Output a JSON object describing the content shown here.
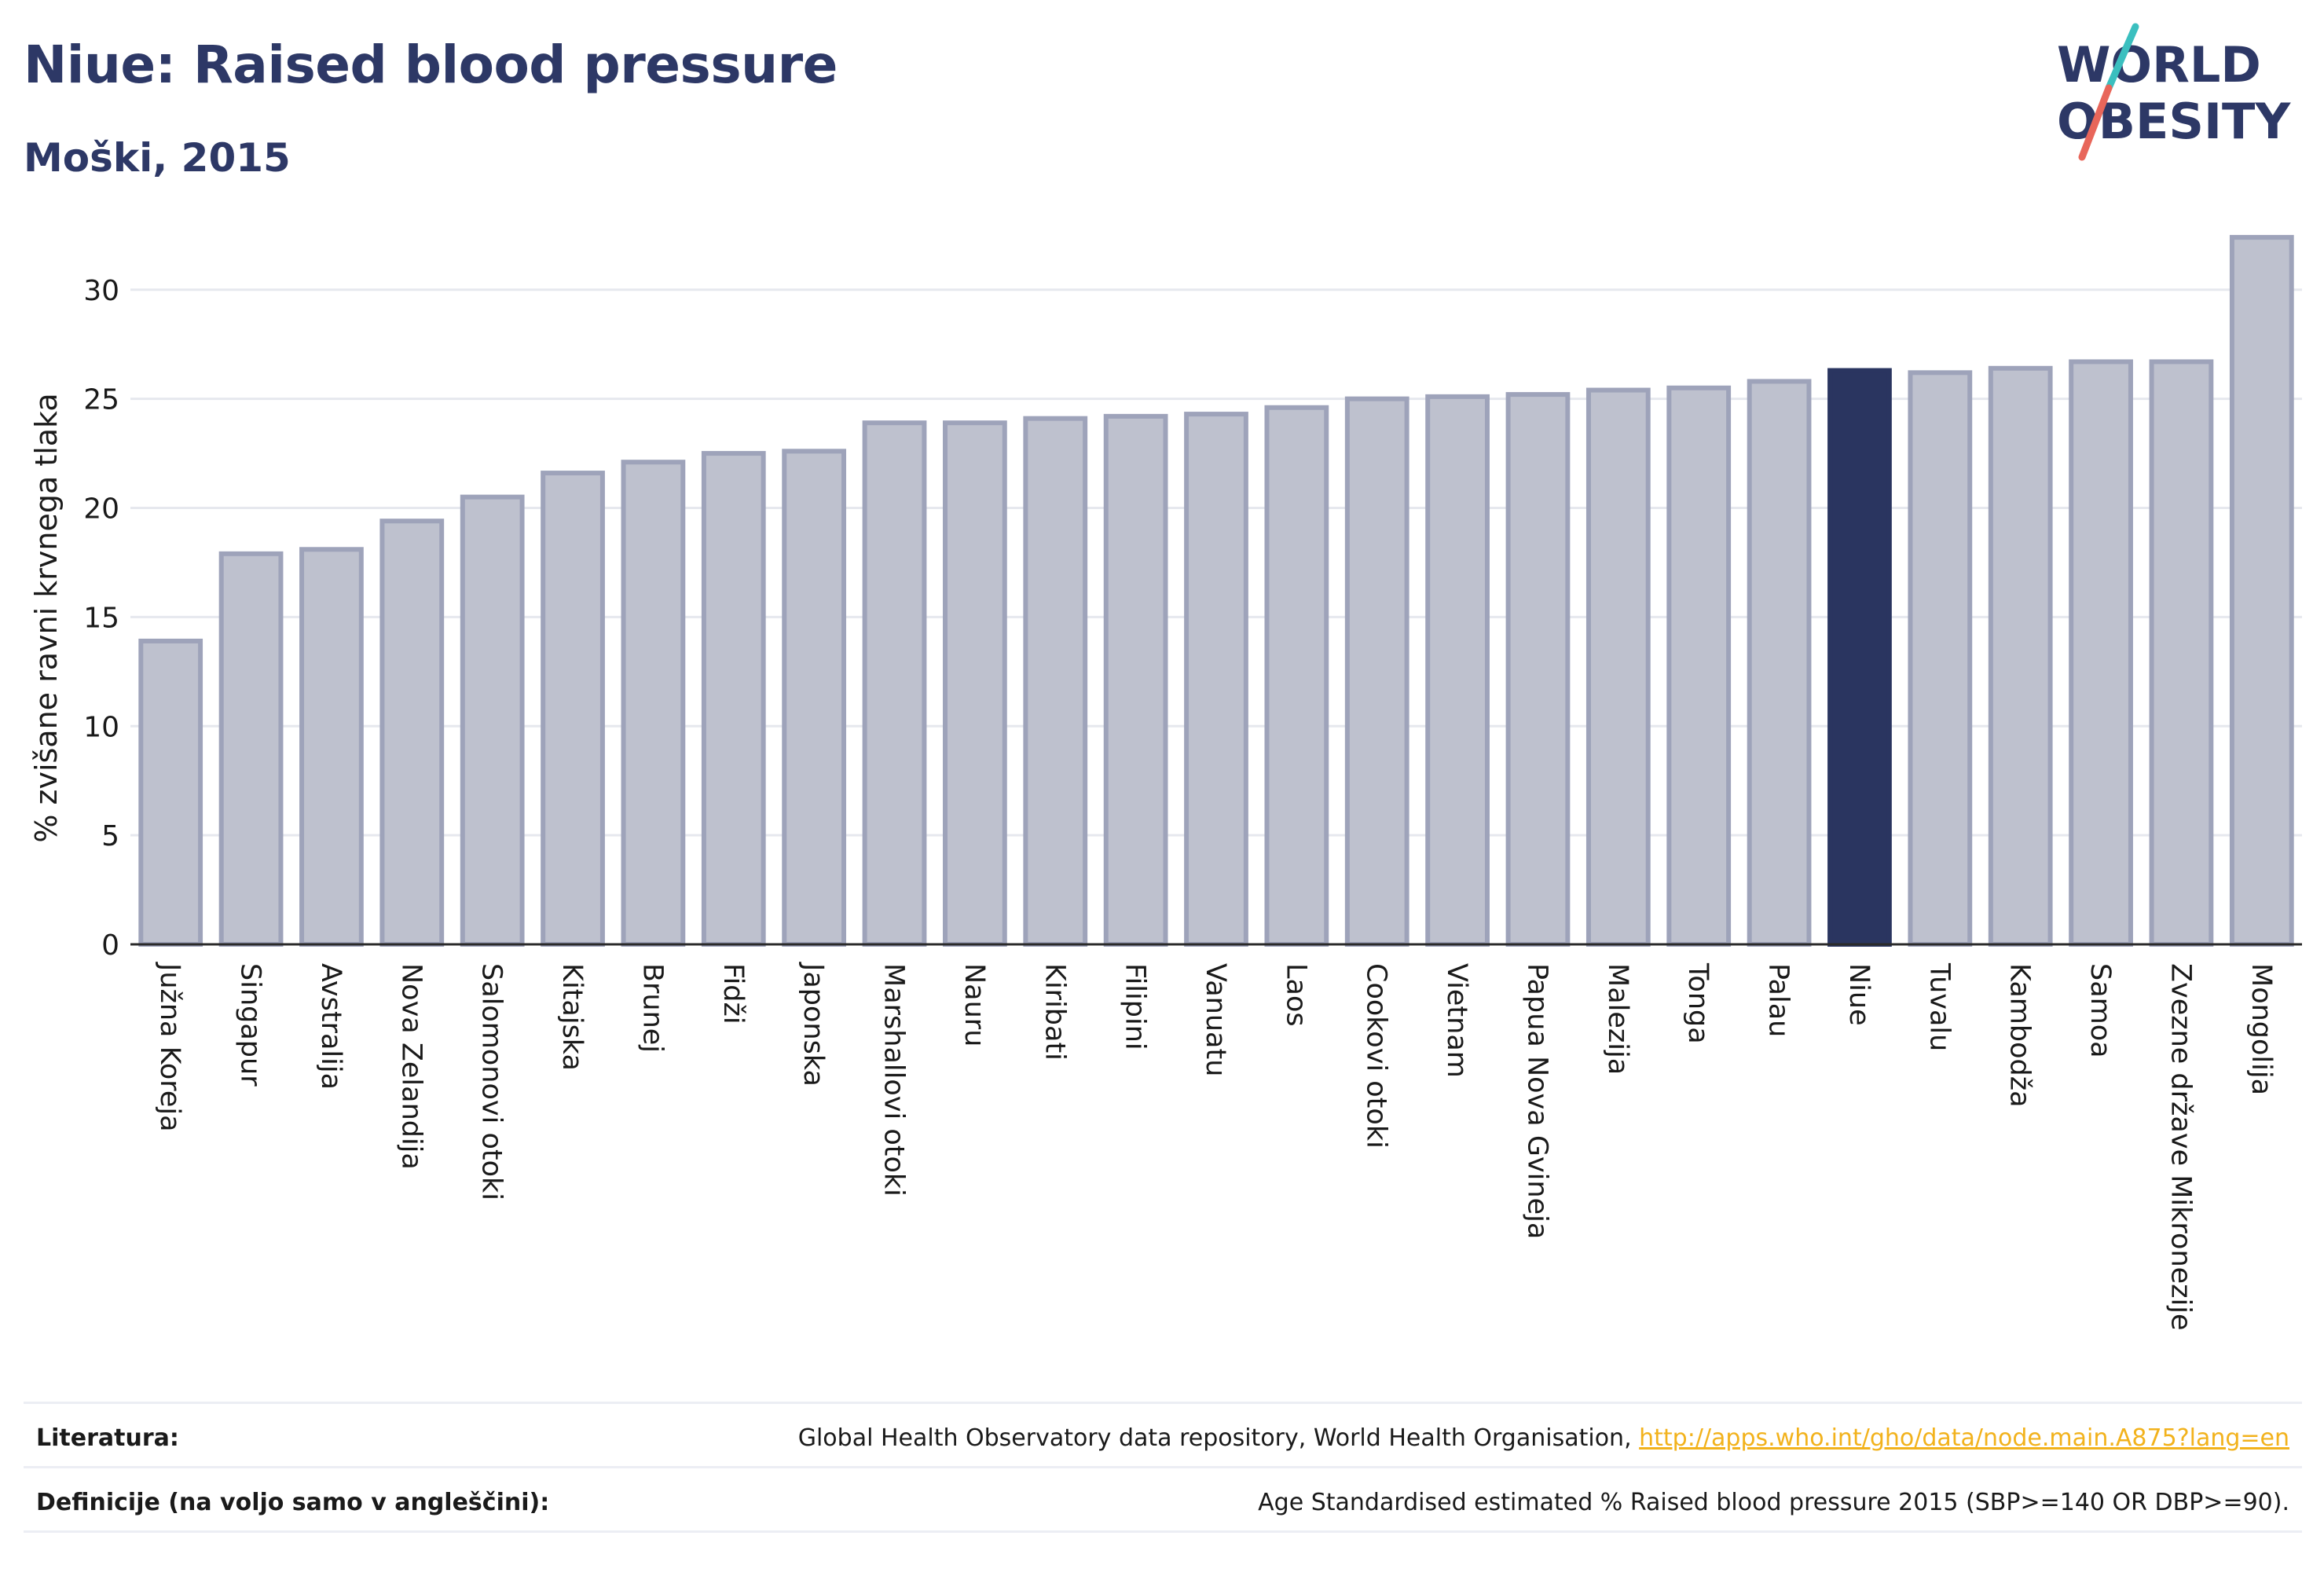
{
  "header": {
    "title": "Niue: Raised blood pressure",
    "subtitle": "Moški, 2015"
  },
  "logo": {
    "line1": "WORLD",
    "line2": "OBESITY",
    "colors": {
      "text": "#2d3866",
      "slash_teal": "#3bbfbf",
      "slash_red": "#e8665a"
    }
  },
  "chart_data": {
    "type": "bar",
    "ylabel": "% zvišane ravni krvnega tlaka",
    "xlabel": "",
    "ylim": [
      0,
      32.8
    ],
    "yticks": [
      0,
      5,
      10,
      15,
      20,
      25,
      30
    ],
    "grid": true,
    "highlight": "Niue",
    "colors": {
      "bar": "#bec1ce",
      "bar_edge": "#9ea3ba",
      "highlight": "#2a3560",
      "grid": "#e6e8ee",
      "axis": "#2a2a2a"
    },
    "categories": [
      "Južna Koreja",
      "Singapur",
      "Avstralija",
      "Nova Zelandija",
      "Salomonovi otoki",
      "Kitajska",
      "Brunej",
      "Fidži",
      "Japonska",
      "Marshallovi otoki",
      "Nauru",
      "Kiribati",
      "Filipini",
      "Vanuatu",
      "Laos",
      "Cookovi otoki",
      "Vietnam",
      "Papua Nova Gvineja",
      "Malezija",
      "Tonga",
      "Palau",
      "Niue",
      "Tuvalu",
      "Kambodža",
      "Samoa",
      "Zvezne države Mikronezije",
      "Mongolija"
    ],
    "values": [
      13.9,
      17.9,
      18.1,
      19.4,
      20.5,
      21.6,
      22.1,
      22.5,
      22.6,
      23.9,
      23.9,
      24.1,
      24.2,
      24.3,
      24.6,
      25.0,
      25.1,
      25.2,
      25.4,
      25.5,
      25.8,
      26.3,
      26.2,
      26.4,
      26.7,
      26.7,
      32.4
    ]
  },
  "footer": {
    "references_label": "Literatura:",
    "references_text": "Global Health Observatory data repository, World Health Organisation, ",
    "references_link": "http://apps.who.int/gho/data/node.main.A875?lang=en",
    "definitions_label": "Definicije (na voljo samo v angleščini):",
    "definitions_text": "Age Standardised estimated % Raised blood pressure 2015 (SBP>=140 OR DBP>=90)."
  }
}
